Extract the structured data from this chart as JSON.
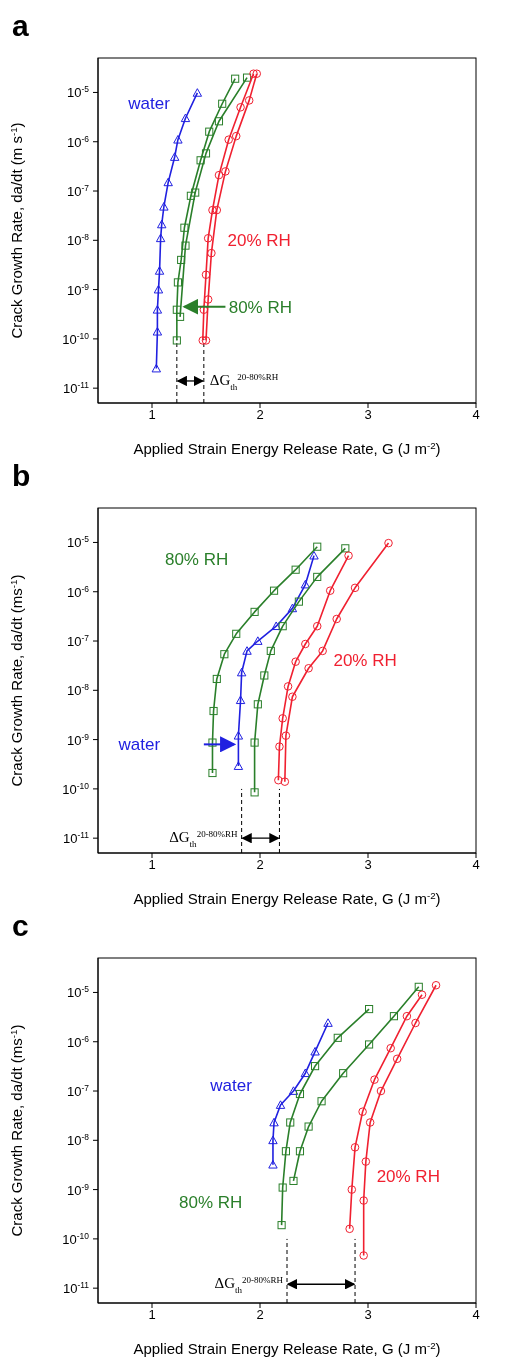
{
  "chart_data": [
    {
      "type": "line",
      "title": "a",
      "xlabel": "Applied Strain Energy Release Rate, G (J m$^{-2}$)",
      "ylabel": "Crack Growth Rate, da/dt (m s$^{-1}$)",
      "log": "y",
      "line_style": "solid",
      "xlim": [
        0.5,
        4
      ],
      "xticks": [
        1,
        2,
        3,
        4
      ],
      "ylim": [
        5e-12,
        5e-05
      ],
      "yticks": [
        {
          "value": 1e-11,
          "label": "10$^{-11}$"
        },
        {
          "value": 1e-10,
          "label": "10$^{-10}$"
        },
        {
          "value": 1e-09,
          "label": "10$^{-9}$"
        },
        {
          "value": 1e-08,
          "label": "10$^{-8}$"
        },
        {
          "value": 1e-07,
          "label": "10$^{-7}$"
        },
        {
          "value": 1e-06,
          "label": "10$^{-6}$"
        },
        {
          "value": 1e-05,
          "label": "10$^{-5}$"
        }
      ],
      "series": [
        {
          "name": "water",
          "color": "#2020e0",
          "marker": "triangle",
          "x": [
            1.04,
            1.05,
            1.05,
            1.06,
            1.07,
            1.08,
            1.09,
            1.11,
            1.15,
            1.21,
            1.24,
            1.31,
            1.42
          ],
          "values": [
            2.5e-11,
            1.4e-10,
            3.9e-10,
            1e-09,
            2.4e-09,
            1.1e-08,
            2.1e-08,
            4.8e-08,
            1.5e-07,
            4.9e-07,
            1.1e-06,
            3e-06,
            9.8e-06
          ]
        },
        {
          "name": "80% RH",
          "color": "#2a7f2a",
          "marker": "square",
          "x": [
            1.23,
            1.23,
            1.24,
            1.27,
            1.3,
            1.36,
            1.45,
            1.53,
            1.65,
            1.77
          ],
          "values": [
            9.3e-11,
            3.9e-10,
            1.4e-09,
            4e-09,
            1.8e-08,
            8e-08,
            4.2e-07,
            1.6e-06,
            5.9e-06,
            1.9e-05
          ]
        },
        {
          "color": "#2a7f2a",
          "marker": "square",
          "x": [
            1.26,
            1.31,
            1.4,
            1.5,
            1.62,
            1.88
          ],
          "values": [
            2.8e-10,
            7.8e-09,
            9.3e-08,
            5.8e-07,
            2.6e-06,
            2e-05
          ]
        },
        {
          "name": "20% RH",
          "color": "#f02030",
          "marker": "circle",
          "x": [
            1.47,
            1.48,
            1.5,
            1.52,
            1.56,
            1.62,
            1.71,
            1.82,
            1.94
          ],
          "values": [
            9.3e-11,
            3.9e-10,
            2e-09,
            1.1e-08,
            4.1e-08,
            2.1e-07,
            1.1e-06,
            5e-06,
            2.4e-05
          ]
        },
        {
          "color": "#f02030",
          "marker": "circle",
          "x": [
            1.5,
            1.52,
            1.55,
            1.6,
            1.68,
            1.78,
            1.9,
            1.97
          ],
          "values": [
            9.3e-11,
            6.3e-10,
            5.5e-09,
            4.1e-08,
            2.5e-07,
            1.3e-06,
            6.9e-06,
            2.4e-05
          ]
        }
      ],
      "ref_lines": [
        {
          "axis": "x",
          "value": 1.23,
          "color": "#000000",
          "line_style": "dashed"
        },
        {
          "axis": "x",
          "value": 1.48,
          "color": "#000000",
          "line_style": "dashed"
        }
      ],
      "annotations": [
        {
          "text": "ΔG$_{th}$$^{20-80%RH}$",
          "x": 1.48,
          "y": 1.4e-11
        }
      ]
    },
    {
      "type": "line",
      "title": "b",
      "xlabel": "Applied Strain Energy Release Rate, G (J m$^{-2}$)",
      "ylabel": "Crack Growth Rate, da/dt (ms$^{-1}$)",
      "log": "y",
      "line_style": "solid",
      "xlim": [
        0.5,
        4
      ],
      "xticks": [
        1,
        2,
        3,
        4
      ],
      "ylim": [
        5e-12,
        5e-05
      ],
      "yticks": [
        {
          "value": 1e-11,
          "label": "10$^{-11}$"
        },
        {
          "value": 1e-10,
          "label": "10$^{-10}$"
        },
        {
          "value": 1e-09,
          "label": "10$^{-9}$"
        },
        {
          "value": 1e-08,
          "label": "10$^{-8}$"
        },
        {
          "value": 1e-07,
          "label": "10$^{-7}$"
        },
        {
          "value": 1e-06,
          "label": "10$^{-6}$"
        },
        {
          "value": 1e-05,
          "label": "10$^{-5}$"
        }
      ],
      "series": [
        {
          "name": "water",
          "color": "#2020e0",
          "marker": "triangle",
          "x": [
            1.8,
            1.8,
            1.82,
            1.83,
            1.88,
            1.98,
            2.15,
            2.3,
            2.42,
            2.5
          ],
          "values": [
            2.9e-10,
            1.2e-09,
            6.3e-09,
            2.3e-08,
            6.3e-08,
            1e-07,
            2e-07,
            4.6e-07,
            1.4e-06,
            5.4e-06
          ]
        },
        {
          "name": "80% RH",
          "color": "#2a7f2a",
          "marker": "square",
          "x": [
            1.56,
            1.56,
            1.57,
            1.6,
            1.67,
            1.78,
            1.95,
            2.13,
            2.33,
            2.53
          ],
          "values": [
            2.1e-10,
            8.7e-10,
            3.8e-09,
            1.7e-08,
            5.4e-08,
            1.4e-07,
            3.9e-07,
            1.05e-06,
            2.8e-06,
            8.2e-06
          ]
        },
        {
          "color": "#2a7f2a",
          "marker": "square",
          "x": [
            1.95,
            1.95,
            1.98,
            2.04,
            2.1,
            2.21,
            2.36,
            2.53,
            2.79
          ],
          "values": [
            8.5e-11,
            8.7e-10,
            5.2e-09,
            2e-08,
            6.3e-08,
            2e-07,
            6.3e-07,
            2e-06,
            7.6e-06
          ]
        },
        {
          "name": "20% RH",
          "color": "#f02030",
          "marker": "circle",
          "x": [
            2.17,
            2.18,
            2.21,
            2.26,
            2.33,
            2.42,
            2.53,
            2.65,
            2.82
          ],
          "values": [
            1.5e-10,
            7.2e-10,
            2.7e-09,
            1.2e-08,
            3.8e-08,
            8.7e-08,
            2e-07,
            1.05e-06,
            5.4e-06
          ]
        },
        {
          "color": "#f02030",
          "marker": "circle",
          "x": [
            2.23,
            2.24,
            2.3,
            2.45,
            2.58,
            2.71,
            2.88,
            3.19
          ],
          "values": [
            1.4e-10,
            1.2e-09,
            7.4e-09,
            2.8e-08,
            6.3e-08,
            2.8e-07,
            1.2e-06,
            9.7e-06
          ]
        }
      ],
      "ref_lines": [
        {
          "axis": "x",
          "value": 1.83,
          "color": "#000000",
          "line_style": "dashed"
        },
        {
          "axis": "x",
          "value": 2.18,
          "color": "#000000",
          "line_style": "dashed"
        }
      ],
      "annotations": [
        {
          "text": "ΔG$_{th}$$^{20-80%RH}$",
          "x": 1.83,
          "y": 1e-11
        }
      ]
    },
    {
      "type": "line",
      "title": "c",
      "xlabel": "Applied Strain Energy Release Rate, G (J m$^{-2}$)",
      "ylabel": "Crack Growth Rate, da/dt (ms$^{-1}$)",
      "log": "y",
      "line_style": "solid",
      "xlim": [
        0.5,
        4
      ],
      "xticks": [
        1,
        2,
        3,
        4
      ],
      "ylim": [
        5e-12,
        5e-05
      ],
      "yticks": [
        {
          "value": 1e-11,
          "label": "10$^{-11}$"
        },
        {
          "value": 1e-10,
          "label": "10$^{-10}$"
        },
        {
          "value": 1e-09,
          "label": "10$^{-9}$"
        },
        {
          "value": 1e-08,
          "label": "10$^{-8}$"
        },
        {
          "value": 1e-07,
          "label": "10$^{-7}$"
        },
        {
          "value": 1e-06,
          "label": "10$^{-6}$"
        },
        {
          "value": 1e-05,
          "label": "10$^{-5}$"
        }
      ],
      "series": [
        {
          "name": "water",
          "color": "#2020e0",
          "marker": "triangle",
          "x": [
            2.12,
            2.12,
            2.13,
            2.19,
            2.31,
            2.42,
            2.51,
            2.63
          ],
          "values": [
            3.2e-09,
            1e-08,
            2.3e-08,
            5.2e-08,
            1e-07,
            2.3e-07,
            6.3e-07,
            2.4e-06
          ]
        },
        {
          "name": "80% RH",
          "color": "#2a7f2a",
          "marker": "square",
          "x": [
            2.2,
            2.21,
            2.24,
            2.28,
            2.37,
            2.51,
            2.72,
            3.01
          ],
          "values": [
            1.9e-10,
            1.1e-09,
            6e-09,
            2.3e-08,
            8.7e-08,
            3.2e-07,
            1.2e-06,
            4.6e-06
          ]
        },
        {
          "color": "#2a7f2a",
          "marker": "square",
          "x": [
            2.31,
            2.37,
            2.45,
            2.57,
            2.77,
            3.01,
            3.24,
            3.47
          ],
          "values": [
            1.5e-09,
            6e-09,
            1.9e-08,
            6.2e-08,
            2.3e-07,
            8.8e-07,
            3.3e-06,
            1.3e-05
          ]
        },
        {
          "name": "20% RH",
          "color": "#f02030",
          "marker": "circle",
          "x": [
            2.83,
            2.85,
            2.88,
            2.95,
            3.06,
            3.21,
            3.36,
            3.5
          ],
          "values": [
            1.6e-10,
            1e-09,
            7.2e-09,
            3.8e-08,
            1.7e-07,
            7.4e-07,
            3.3e-06,
            9e-06
          ]
        },
        {
          "color": "#f02030",
          "marker": "circle",
          "x": [
            2.96,
            2.96,
            2.98,
            3.02,
            3.12,
            3.27,
            3.44,
            3.63
          ],
          "values": [
            4.6e-11,
            6e-10,
            3.7e-09,
            2.3e-08,
            1e-07,
            4.5e-07,
            2.4e-06,
            1.4e-05
          ]
        }
      ],
      "ref_lines": [
        {
          "axis": "x",
          "value": 2.25,
          "color": "#000000",
          "line_style": "dashed"
        },
        {
          "axis": "x",
          "value": 2.88,
          "color": "#000000",
          "line_style": "dashed"
        }
      ],
      "annotations": [
        {
          "text": "ΔG$_{th}$$^{20-80%RH}$",
          "x": 2.25,
          "y": 1.2e-11
        }
      ]
    }
  ]
}
